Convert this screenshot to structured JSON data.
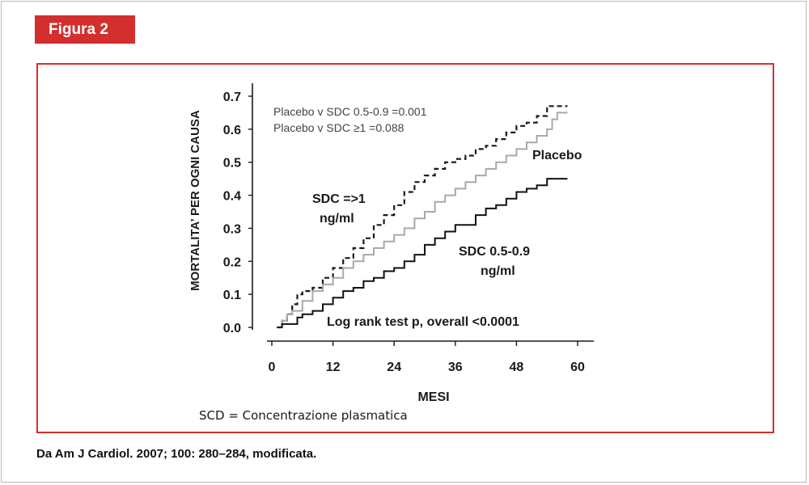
{
  "figure": {
    "tag": "Figura 2",
    "accent_color": "#d32f2f",
    "source": "Da Am J Cardiol. 2007; 100: 280–284, modificata."
  },
  "chart_data": {
    "type": "line",
    "ylabel": "MORTALITA’ PER OGNI CAUSA",
    "xlabel": "MESI",
    "xlim": [
      0,
      60
    ],
    "ylim": [
      0.0,
      0.7
    ],
    "x_ticks": [
      "0",
      "12",
      "24",
      "36",
      "48",
      "60"
    ],
    "y_ticks": [
      "0.0",
      "0.1",
      "0.2",
      "0.3",
      "0.4",
      "0.5",
      "0.6",
      "0.7"
    ],
    "grid": false,
    "stats_lines": [
      "Placebo v SDC 0.5-0.9 =0.001",
      "Placebo v SDC ≥1 =0.088"
    ],
    "log_rank": "Log rank test p, overall <0.0001",
    "caption": "SCD = Concentrazione plasmatica",
    "series": [
      {
        "label_lines": [
          "SDC =>1",
          "ng/ml"
        ],
        "style": "dashed",
        "color": "#1a1a1a",
        "points": [
          [
            1,
            0.0
          ],
          [
            2,
            0.02
          ],
          [
            3,
            0.04
          ],
          [
            4,
            0.07
          ],
          [
            5,
            0.1
          ],
          [
            6,
            0.11
          ],
          [
            8,
            0.12
          ],
          [
            10,
            0.15
          ],
          [
            12,
            0.18
          ],
          [
            14,
            0.21
          ],
          [
            16,
            0.24
          ],
          [
            18,
            0.27
          ],
          [
            20,
            0.31
          ],
          [
            22,
            0.34
          ],
          [
            24,
            0.37
          ],
          [
            26,
            0.41
          ],
          [
            28,
            0.44
          ],
          [
            30,
            0.46
          ],
          [
            32,
            0.48
          ],
          [
            34,
            0.5
          ],
          [
            36,
            0.51
          ],
          [
            38,
            0.52
          ],
          [
            40,
            0.54
          ],
          [
            42,
            0.55
          ],
          [
            44,
            0.57
          ],
          [
            46,
            0.59
          ],
          [
            48,
            0.61
          ],
          [
            50,
            0.62
          ],
          [
            52,
            0.64
          ],
          [
            53,
            0.64
          ],
          [
            54,
            0.67
          ],
          [
            58,
            0.67
          ]
        ]
      },
      {
        "label_lines": [
          "Placebo"
        ],
        "style": "solid",
        "color": "#a8a8a8",
        "points": [
          [
            1,
            0.0
          ],
          [
            2,
            0.02
          ],
          [
            3,
            0.04
          ],
          [
            4,
            0.05
          ],
          [
            6,
            0.08
          ],
          [
            8,
            0.11
          ],
          [
            10,
            0.13
          ],
          [
            12,
            0.15
          ],
          [
            14,
            0.18
          ],
          [
            16,
            0.2
          ],
          [
            18,
            0.22
          ],
          [
            20,
            0.24
          ],
          [
            22,
            0.26
          ],
          [
            24,
            0.28
          ],
          [
            26,
            0.3
          ],
          [
            28,
            0.33
          ],
          [
            30,
            0.35
          ],
          [
            32,
            0.38
          ],
          [
            34,
            0.4
          ],
          [
            36,
            0.42
          ],
          [
            38,
            0.44
          ],
          [
            40,
            0.46
          ],
          [
            42,
            0.48
          ],
          [
            44,
            0.5
          ],
          [
            46,
            0.52
          ],
          [
            48,
            0.54
          ],
          [
            50,
            0.56
          ],
          [
            52,
            0.58
          ],
          [
            54,
            0.6
          ],
          [
            55,
            0.63
          ],
          [
            56,
            0.65
          ],
          [
            58,
            0.65
          ]
        ]
      },
      {
        "label_lines": [
          "SDC 0.5-0.9",
          "ng/ml"
        ],
        "style": "solid",
        "color": "#111111",
        "points": [
          [
            1,
            0.0
          ],
          [
            2,
            0.01
          ],
          [
            4,
            0.01
          ],
          [
            5,
            0.03
          ],
          [
            6,
            0.04
          ],
          [
            8,
            0.05
          ],
          [
            10,
            0.07
          ],
          [
            12,
            0.09
          ],
          [
            14,
            0.11
          ],
          [
            16,
            0.12
          ],
          [
            18,
            0.14
          ],
          [
            20,
            0.15
          ],
          [
            22,
            0.17
          ],
          [
            24,
            0.18
          ],
          [
            26,
            0.2
          ],
          [
            28,
            0.22
          ],
          [
            30,
            0.25
          ],
          [
            32,
            0.27
          ],
          [
            34,
            0.29
          ],
          [
            36,
            0.31
          ],
          [
            38,
            0.31
          ],
          [
            40,
            0.34
          ],
          [
            42,
            0.36
          ],
          [
            44,
            0.37
          ],
          [
            46,
            0.39
          ],
          [
            48,
            0.41
          ],
          [
            50,
            0.42
          ],
          [
            52,
            0.43
          ],
          [
            54,
            0.45
          ],
          [
            58,
            0.45
          ]
        ]
      }
    ]
  }
}
